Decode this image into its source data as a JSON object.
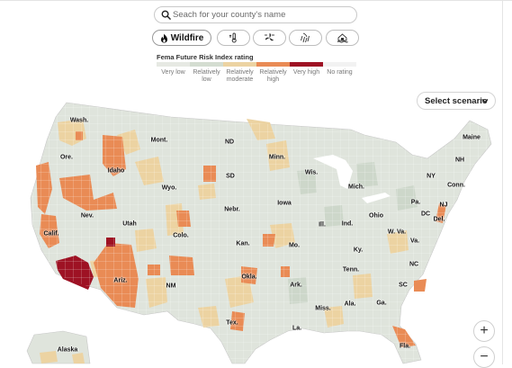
{
  "search": {
    "placeholder": "Seach for your county's name"
  },
  "hazard_tabs": [
    {
      "label": "Wildfire",
      "icon": "flame-icon",
      "active": true
    },
    {
      "label": "",
      "icon": "thermometer-heat-icon",
      "active": false
    },
    {
      "label": "",
      "icon": "wind-icon",
      "active": false
    },
    {
      "label": "",
      "icon": "rain-icon",
      "active": false
    },
    {
      "label": "",
      "icon": "flooded-house-icon",
      "active": false
    }
  ],
  "legend": {
    "title": "Fema Future Risk Index rating",
    "items": [
      {
        "label": "Very low",
        "color": "#e6e9e3"
      },
      {
        "label": "Relatively low",
        "color": "#d4ddd1"
      },
      {
        "label": "Relatively moderate",
        "color": "#ecd3a2"
      },
      {
        "label": "Relatively high",
        "color": "#e98b55"
      },
      {
        "label": "Very high",
        "color": "#9e1224"
      },
      {
        "label": "No rating",
        "color": "#f2f2f2"
      }
    ]
  },
  "scenario_button": {
    "label": "Select scenario"
  },
  "map_labels": [
    {
      "text": "Wash."
    },
    {
      "text": "Ore."
    },
    {
      "text": "Idaho"
    },
    {
      "text": "Mont."
    },
    {
      "text": "Wyo."
    },
    {
      "text": "Nev."
    },
    {
      "text": "Calif."
    },
    {
      "text": "Utah"
    },
    {
      "text": "Colo."
    },
    {
      "text": "Ariz."
    },
    {
      "text": "NM"
    },
    {
      "text": "ND"
    },
    {
      "text": "SD"
    },
    {
      "text": "Nebr."
    },
    {
      "text": "Kan."
    },
    {
      "text": "Okla."
    },
    {
      "text": "Tex."
    },
    {
      "text": "Minn."
    },
    {
      "text": "Iowa"
    },
    {
      "text": "Mo."
    },
    {
      "text": "Ark."
    },
    {
      "text": "La."
    },
    {
      "text": "Wis."
    },
    {
      "text": "Ill."
    },
    {
      "text": "Mich."
    },
    {
      "text": "Ind."
    },
    {
      "text": "Ohio"
    },
    {
      "text": "Ky."
    },
    {
      "text": "Tenn."
    },
    {
      "text": "Miss."
    },
    {
      "text": "Ala."
    },
    {
      "text": "Ga."
    },
    {
      "text": "Fla."
    },
    {
      "text": "SC"
    },
    {
      "text": "NC"
    },
    {
      "text": "Va."
    },
    {
      "text": "W. Va."
    },
    {
      "text": "Pa."
    },
    {
      "text": "NY"
    },
    {
      "text": "NJ"
    },
    {
      "text": "Del."
    },
    {
      "text": "DC"
    },
    {
      "text": "Conn."
    },
    {
      "text": "NH"
    },
    {
      "text": "Maine"
    },
    {
      "text": "Alaska"
    }
  ],
  "zoom": {
    "in": "+",
    "out": "−"
  }
}
